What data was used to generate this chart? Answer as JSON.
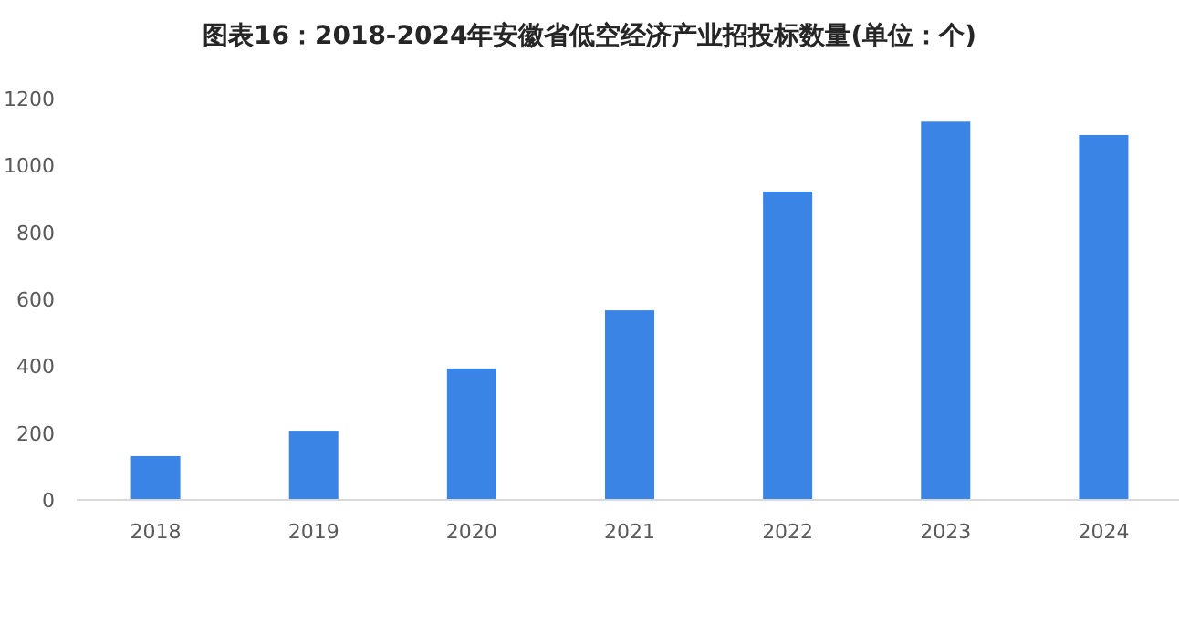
{
  "chart_data": {
    "type": "bar",
    "title": "图表16：2018-2024年安徽省低空经济产业招投标数量(单位：个)",
    "categories": [
      "2018",
      "2019",
      "2020",
      "2021",
      "2022",
      "2023",
      "2024"
    ],
    "values": [
      131,
      207,
      393,
      567,
      922,
      1131,
      1091
    ],
    "color": "#3a84e6",
    "ylim": [
      0,
      1200
    ],
    "yticks": [
      0,
      200,
      400,
      600,
      800,
      1000,
      1200
    ],
    "grid": false
  }
}
